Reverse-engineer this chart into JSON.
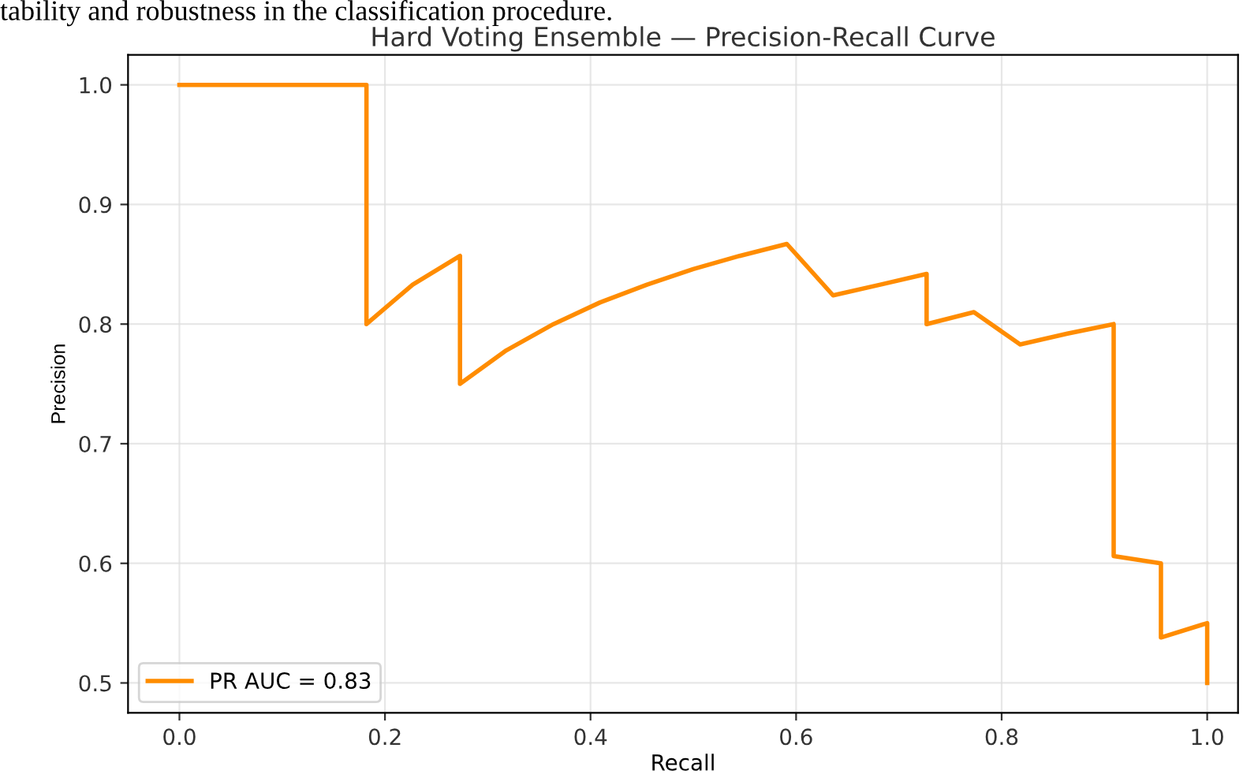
{
  "chart_data": {
    "type": "line",
    "title": "Hard Voting Ensemble — Precision-Recall Curve",
    "xlabel": "Recall",
    "ylabel": "Precision",
    "annotations": [
      "tability and robustness in the classification procedure."
    ],
    "x": [
      0,
      0.182,
      0.182,
      0.227,
      0.273,
      0.273,
      0.318,
      0.364,
      0.409,
      0.455,
      0.5,
      0.545,
      0.591,
      0.636,
      0.682,
      0.727,
      0.727,
      0.773,
      0.818,
      0.864,
      0.909,
      0.909,
      0.955,
      0.955,
      1.0,
      1.0
    ],
    "series": [
      {
        "name": "PR AUC = 0.83",
        "color": "#ff8c00",
        "values": [
          1.0,
          1.0,
          0.8,
          0.833,
          0.857,
          0.75,
          0.778,
          0.8,
          0.818,
          0.833,
          0.846,
          0.857,
          0.867,
          0.824,
          0.833,
          0.842,
          0.8,
          0.81,
          0.783,
          0.792,
          0.8,
          0.606,
          0.6,
          0.538,
          0.55,
          0.5
        ]
      }
    ],
    "xlim": [
      -0.05,
      1.03
    ],
    "ylim": [
      0.475,
      1.025
    ],
    "xticks": [
      {
        "value": 0,
        "label": "0.0"
      },
      0.2,
      0.4,
      0.6,
      0.8,
      {
        "value": 1,
        "label": "1.0"
      }
    ],
    "yticks": [
      0.5,
      0.6,
      0.7,
      0.8,
      0.9,
      {
        "value": 1,
        "label": "1.0"
      }
    ],
    "grid": true,
    "legend": "bottom left",
    "marker": "none",
    "line_style": "solid"
  }
}
